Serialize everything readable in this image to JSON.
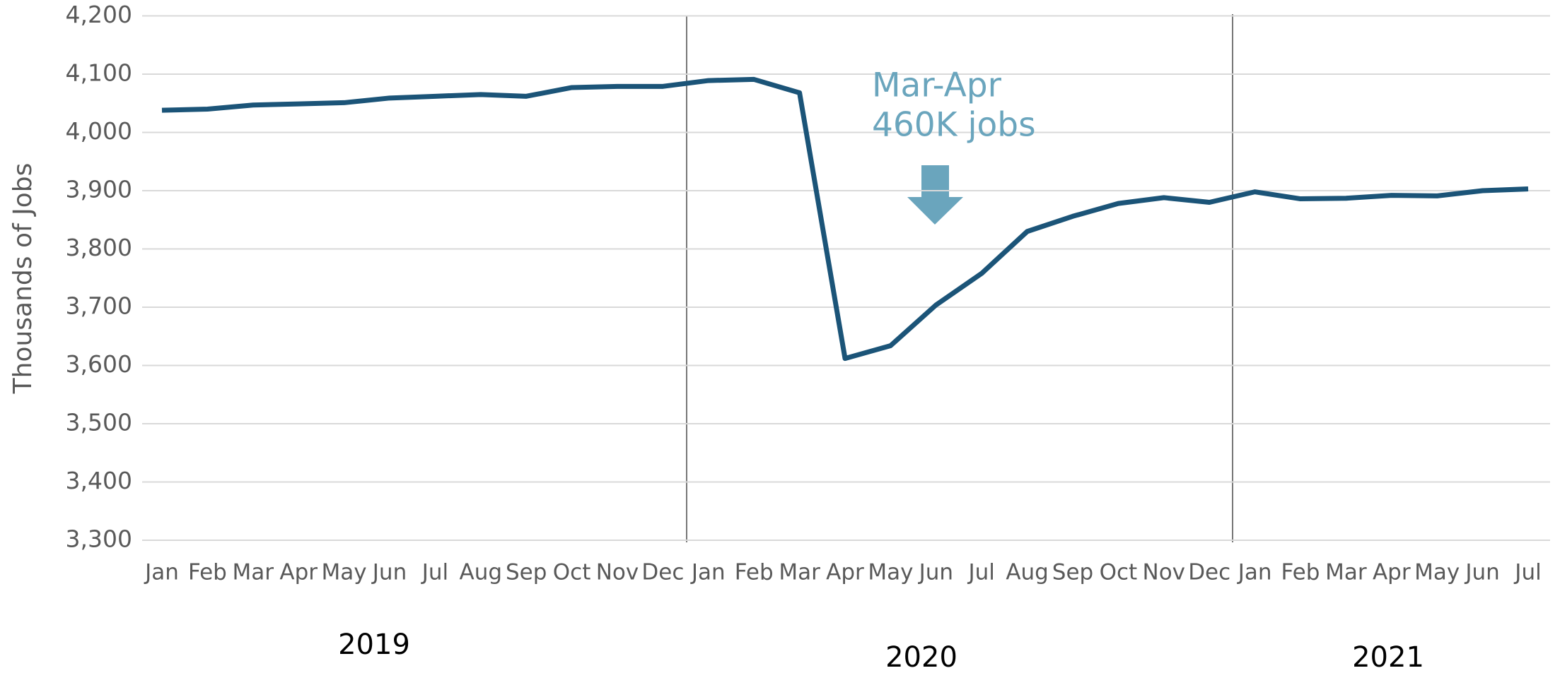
{
  "chart_data": {
    "type": "line",
    "y_axis_label": "Thousands of Jobs",
    "categories": [
      "Jan",
      "Feb",
      "Mar",
      "Apr",
      "May",
      "Jun",
      "Jul",
      "Aug",
      "Sep",
      "Oct",
      "Nov",
      "Dec",
      "Jan",
      "Feb",
      "Mar",
      "Apr",
      "May",
      "Jun",
      "Jul",
      "Aug",
      "Sep",
      "Oct",
      "Nov",
      "Dec",
      "Jan",
      "Feb",
      "Mar",
      "Apr",
      "May",
      "Jun",
      "Jul"
    ],
    "year_labels": [
      "2019",
      "2020",
      "2021"
    ],
    "series": [
      {
        "name": "Jobs",
        "color": "#1b5478",
        "values": [
          4038,
          4040,
          4047,
          4049,
          4051,
          4059,
          4062,
          4065,
          4062,
          4077,
          4079,
          4079,
          4089,
          4091,
          4068,
          3612,
          3634,
          3704,
          3758,
          3830,
          3856,
          3878,
          3888,
          3880,
          3898,
          3886,
          3887,
          3892,
          3891,
          3900,
          3903
        ]
      }
    ],
    "annotation": {
      "lines": [
        "Mar-Apr",
        "460K jobs"
      ],
      "color": "#6aa5bd"
    },
    "ylim": [
      3300,
      4200
    ],
    "yticks": [
      {
        "value": 3300,
        "label": "3,300"
      },
      {
        "value": 3400,
        "label": "3,400"
      },
      {
        "value": 3500,
        "label": "3,500"
      },
      {
        "value": 3600,
        "label": "3,600"
      },
      {
        "value": 3700,
        "label": "3,700"
      },
      {
        "value": 3800,
        "label": "3,800"
      },
      {
        "value": 3900,
        "label": "3,900"
      },
      {
        "value": 4000,
        "label": "4,000"
      },
      {
        "value": 4100,
        "label": "4,100"
      },
      {
        "value": 4200,
        "label": "4,200"
      }
    ],
    "grid": true
  }
}
